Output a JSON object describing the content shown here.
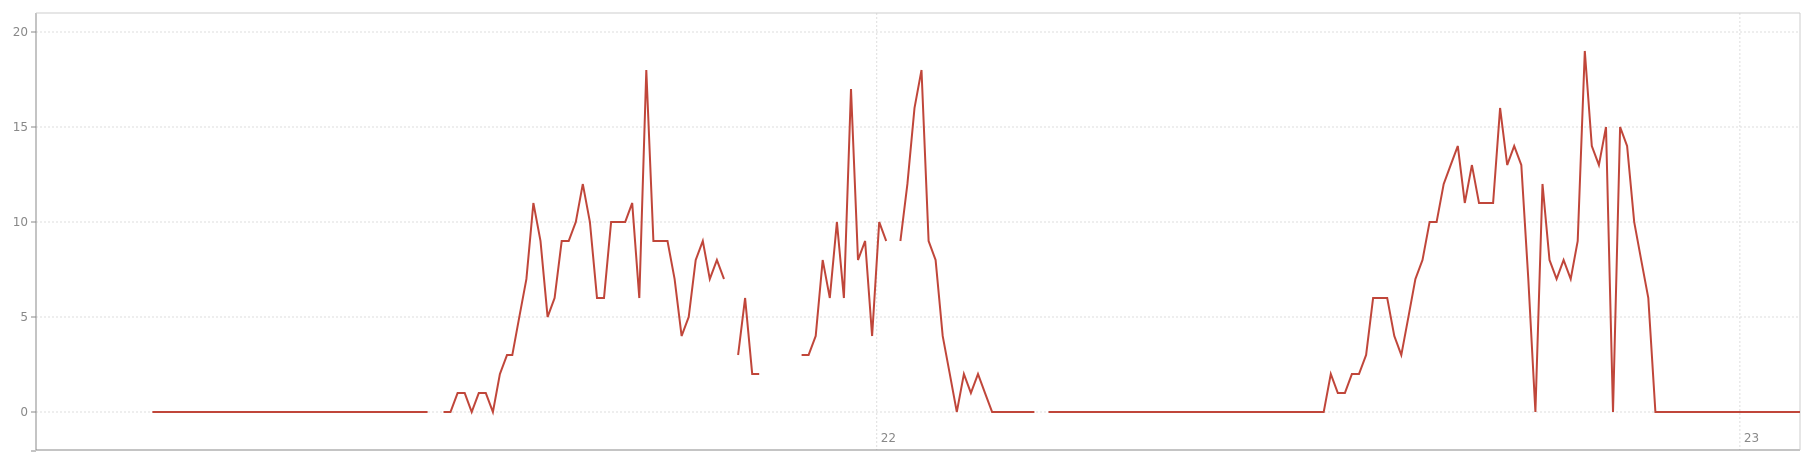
{
  "chart_data": {
    "type": "line",
    "title": "",
    "xlabel": "",
    "ylabel": "",
    "ylim": [
      -2,
      21
    ],
    "xlim": [
      0,
      1
    ],
    "yticks": [
      0,
      5,
      10,
      15,
      20
    ],
    "ytick_labels": [
      "0",
      "5",
      "10",
      "15",
      "20"
    ],
    "xticks": [
      {
        "label": "22",
        "x": 0.4766
      },
      {
        "label": "23",
        "x": 0.9659
      }
    ],
    "grid": true,
    "legend": "none",
    "colors": {
      "line": "#c0463a",
      "grid": "#dddddd",
      "axis": "#888888"
    },
    "series": [
      {
        "segments": [
          [
            [
              0.066,
              0
            ],
            [
              0.222,
              0
            ]
          ],
          [
            [
              0.231,
              0
            ],
            [
              0.235,
              0
            ],
            [
              0.239,
              1
            ],
            [
              0.243,
              1
            ],
            [
              0.247,
              0
            ],
            [
              0.251,
              1
            ],
            [
              0.255,
              1
            ],
            [
              0.259,
              0
            ],
            [
              0.263,
              2
            ],
            [
              0.267,
              3
            ],
            [
              0.27,
              3
            ],
            [
              0.274,
              5
            ],
            [
              0.278,
              7
            ],
            [
              0.282,
              11
            ],
            [
              0.286,
              9
            ],
            [
              0.29,
              5
            ],
            [
              0.294,
              6
            ],
            [
              0.298,
              9
            ],
            [
              0.302,
              9
            ],
            [
              0.306,
              10
            ],
            [
              0.31,
              12
            ],
            [
              0.314,
              10
            ],
            [
              0.318,
              6
            ],
            [
              0.322,
              6
            ],
            [
              0.326,
              10
            ],
            [
              0.33,
              10
            ],
            [
              0.334,
              10
            ],
            [
              0.338,
              11
            ],
            [
              0.342,
              6
            ],
            [
              0.346,
              18
            ],
            [
              0.35,
              9
            ],
            [
              0.354,
              9
            ],
            [
              0.358,
              9
            ],
            [
              0.362,
              7
            ],
            [
              0.366,
              4
            ],
            [
              0.37,
              5
            ],
            [
              0.374,
              8
            ],
            [
              0.378,
              9
            ],
            [
              0.382,
              7
            ],
            [
              0.386,
              8
            ],
            [
              0.39,
              7
            ]
          ],
          [
            [
              0.398,
              3
            ],
            [
              0.402,
              6
            ],
            [
              0.406,
              2
            ],
            [
              0.41,
              2
            ]
          ],
          [
            [
              0.434,
              3
            ],
            [
              0.438,
              3
            ],
            [
              0.442,
              4
            ],
            [
              0.446,
              8
            ],
            [
              0.45,
              6
            ],
            [
              0.454,
              10
            ],
            [
              0.458,
              6
            ],
            [
              0.462,
              17
            ],
            [
              0.466,
              8
            ],
            [
              0.47,
              9
            ],
            [
              0.474,
              4
            ],
            [
              0.478,
              10
            ],
            [
              0.482,
              9
            ]
          ],
          [
            [
              0.49,
              9
            ],
            [
              0.494,
              12
            ],
            [
              0.498,
              16
            ],
            [
              0.502,
              18
            ],
            [
              0.506,
              9
            ],
            [
              0.51,
              8
            ],
            [
              0.514,
              4
            ],
            [
              0.518,
              2
            ],
            [
              0.522,
              0
            ],
            [
              0.526,
              2
            ],
            [
              0.53,
              1
            ],
            [
              0.534,
              2
            ],
            [
              0.538,
              1
            ],
            [
              0.542,
              0
            ],
            [
              0.566,
              0
            ]
          ],
          [
            [
              0.574,
              0
            ],
            [
              0.73,
              0
            ],
            [
              0.734,
              2
            ],
            [
              0.738,
              1
            ],
            [
              0.742,
              1
            ],
            [
              0.746,
              2
            ],
            [
              0.75,
              2
            ],
            [
              0.754,
              3
            ],
            [
              0.758,
              6
            ],
            [
              0.762,
              6
            ],
            [
              0.766,
              6
            ],
            [
              0.77,
              4
            ],
            [
              0.774,
              3
            ],
            [
              0.778,
              5
            ],
            [
              0.782,
              7
            ],
            [
              0.786,
              8
            ],
            [
              0.79,
              10
            ],
            [
              0.794,
              10
            ],
            [
              0.798,
              12
            ],
            [
              0.802,
              13
            ],
            [
              0.806,
              14
            ],
            [
              0.81,
              11
            ],
            [
              0.814,
              13
            ],
            [
              0.818,
              11
            ],
            [
              0.822,
              11
            ],
            [
              0.826,
              11
            ],
            [
              0.83,
              16
            ],
            [
              0.834,
              13
            ],
            [
              0.838,
              14
            ],
            [
              0.842,
              13
            ],
            [
              0.846,
              7
            ],
            [
              0.85,
              0
            ],
            [
              0.854,
              12
            ],
            [
              0.858,
              8
            ],
            [
              0.862,
              7
            ],
            [
              0.866,
              8
            ],
            [
              0.87,
              7
            ],
            [
              0.874,
              9
            ],
            [
              0.878,
              19
            ],
            [
              0.882,
              14
            ],
            [
              0.886,
              13
            ],
            [
              0.89,
              15
            ],
            [
              0.894,
              0
            ],
            [
              0.898,
              15
            ],
            [
              0.902,
              14
            ],
            [
              0.906,
              10
            ],
            [
              0.91,
              8
            ],
            [
              0.914,
              6
            ],
            [
              0.918,
              0
            ],
            [
              1.0,
              0
            ]
          ]
        ]
      }
    ]
  }
}
